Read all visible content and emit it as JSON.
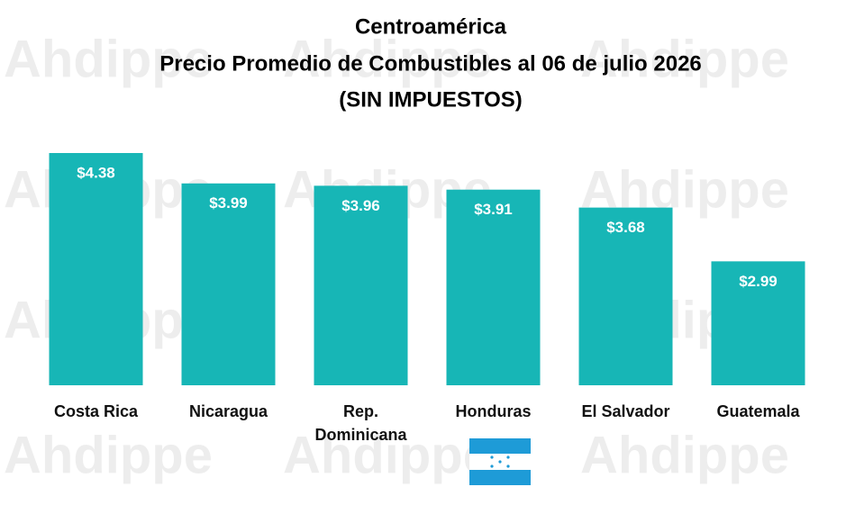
{
  "chart_data": {
    "type": "bar",
    "title": [
      "Centroamérica",
      "Precio Promedio de Combustibles al 06 de julio 2026",
      "(SIN IMPUESTOS)"
    ],
    "watermark": "Ahdippe",
    "categories": [
      "Costa Rica",
      "Nicaragua",
      "Rep. Dominicana",
      "Honduras",
      "El Salvador",
      "Guatemala"
    ],
    "values": [
      4.38,
      3.99,
      3.96,
      3.91,
      3.68,
      2.99
    ],
    "value_labels": [
      "$4.38",
      "$3.99",
      "$3.96",
      "$3.91",
      "$3.68",
      "$2.99"
    ],
    "color": "#17b6b6",
    "ylim": [
      1.4,
      4.5
    ]
  }
}
